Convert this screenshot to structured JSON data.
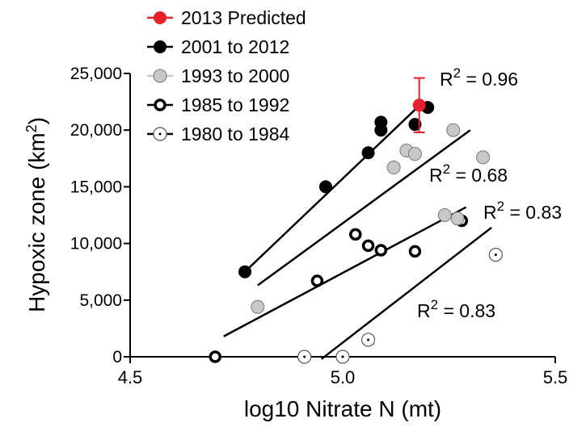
{
  "chart_data": {
    "type": "scatter",
    "xlabel": "log10 Nitrate N (mt)",
    "ylabel": "Hypoxic zone (km",
    "ylabel_sup": "2",
    "ylabel_close": ")",
    "xlim": [
      4.5,
      5.5
    ],
    "ylim": [
      0,
      25000
    ],
    "x_ticks": [
      4.5,
      5.0,
      5.5
    ],
    "x_tick_labels": [
      "4.5",
      "5.0",
      "5.5"
    ],
    "y_ticks": [
      0,
      5000,
      10000,
      15000,
      20000,
      25000
    ],
    "y_tick_labels": [
      "0",
      "5,000",
      "10,000",
      "15,000",
      "20,000",
      "25,000"
    ],
    "grid": false,
    "legend_position": "top-left",
    "series": [
      {
        "name": "2013 Predicted",
        "marker": "filled-red",
        "color": "#e8202a",
        "points": [
          [
            5.18,
            22200
          ]
        ],
        "error_y": [
          [
            19800,
            24600
          ]
        ]
      },
      {
        "name": "2001 to 2012",
        "marker": "filled-black",
        "color": "#000000",
        "points": [
          [
            4.77,
            7500
          ],
          [
            4.96,
            15000
          ],
          [
            5.06,
            18000
          ],
          [
            5.09,
            20000
          ],
          [
            5.09,
            20700
          ],
          [
            5.17,
            20500
          ],
          [
            5.2,
            22000
          ]
        ]
      },
      {
        "name": "1993 to 2000",
        "marker": "filled-gray",
        "color": "#c8c8c8",
        "points": [
          [
            4.8,
            4400
          ],
          [
            5.12,
            16700
          ],
          [
            5.15,
            18200
          ],
          [
            5.17,
            17900
          ],
          [
            5.26,
            20000
          ],
          [
            5.33,
            17600
          ],
          [
            5.24,
            12500
          ],
          [
            5.27,
            12200
          ]
        ]
      },
      {
        "name": "1985 to 1992",
        "marker": "ring-bold",
        "color": "#000000",
        "points": [
          [
            4.7,
            0
          ],
          [
            4.94,
            6700
          ],
          [
            5.03,
            10800
          ],
          [
            5.06,
            9800
          ],
          [
            5.09,
            9400
          ],
          [
            5.17,
            9300
          ],
          [
            5.28,
            12000
          ]
        ]
      },
      {
        "name": "1980 to 1984",
        "marker": "open",
        "color": "#000000",
        "points": [
          [
            4.91,
            0
          ],
          [
            5.0,
            0
          ],
          [
            5.06,
            1500
          ],
          [
            5.36,
            9000
          ]
        ]
      }
    ],
    "fit_lines": [
      {
        "from": [
          4.77,
          7500
        ],
        "to": [
          5.17,
          21800
        ]
      },
      {
        "from": [
          4.8,
          6300
        ],
        "to": [
          5.3,
          20000
        ]
      },
      {
        "from": [
          4.72,
          1800
        ],
        "to": [
          5.29,
          13200
        ]
      },
      {
        "from": [
          4.95,
          -200
        ],
        "to": [
          5.35,
          11400
        ]
      }
    ],
    "annotations": [
      {
        "base": "R",
        "sup": "2",
        "value": " = 0.96"
      },
      {
        "base": "R",
        "sup": "2",
        "value": " = 0.68"
      },
      {
        "base": "R",
        "sup": "2",
        "value": " = 0.83"
      },
      {
        "base": "R",
        "sup": "2",
        "value": " = 0.83"
      }
    ]
  }
}
